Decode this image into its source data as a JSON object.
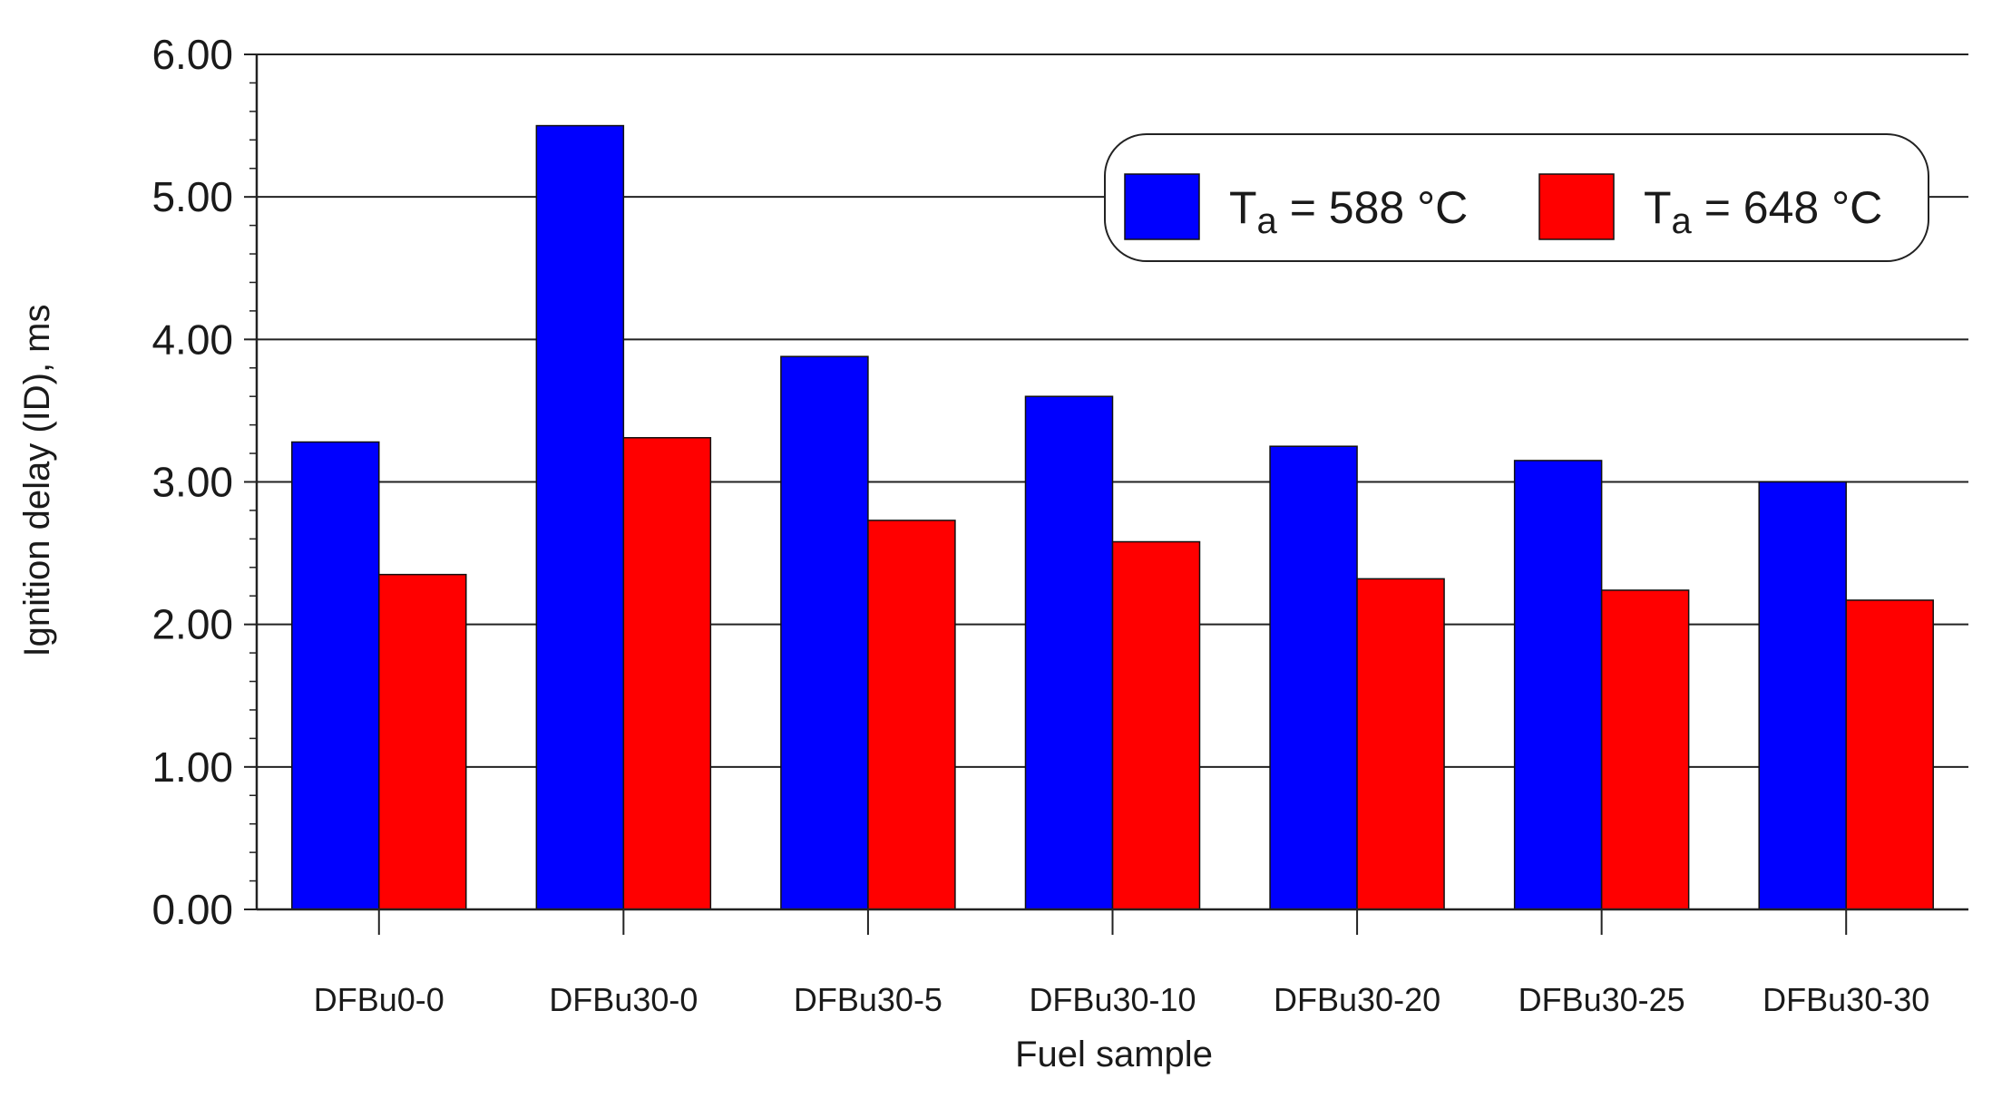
{
  "chart_data": {
    "type": "bar",
    "categories": [
      "DFBu0-0",
      "DFBu30-0",
      "DFBu30-5",
      "DFBu30-10",
      "DFBu30-20",
      "DFBu30-25",
      "DFBu30-30"
    ],
    "series": [
      {
        "name": "T_a = 588 °C",
        "name_main": "T",
        "name_sub": "a",
        "name_rest": " = 588 °C",
        "color": "#0000ff",
        "values": [
          3.28,
          5.5,
          3.88,
          3.6,
          3.25,
          3.15,
          3.0
        ]
      },
      {
        "name": "T_a = 648 °C",
        "name_main": "T",
        "name_sub": "a",
        "name_rest": " = 648 °C",
        "color": "#ff0000",
        "values": [
          2.35,
          3.31,
          2.73,
          2.58,
          2.32,
          2.24,
          2.17
        ]
      }
    ],
    "xlabel": "Fuel sample",
    "ylabel": "Ignition delay (ID), ms",
    "ylim": [
      0,
      6
    ],
    "yticks": [
      "0.00",
      "1.00",
      "2.00",
      "3.00",
      "4.00",
      "5.00",
      "6.00"
    ],
    "grid": "horizontal major lines",
    "legend_position": "top-right"
  }
}
